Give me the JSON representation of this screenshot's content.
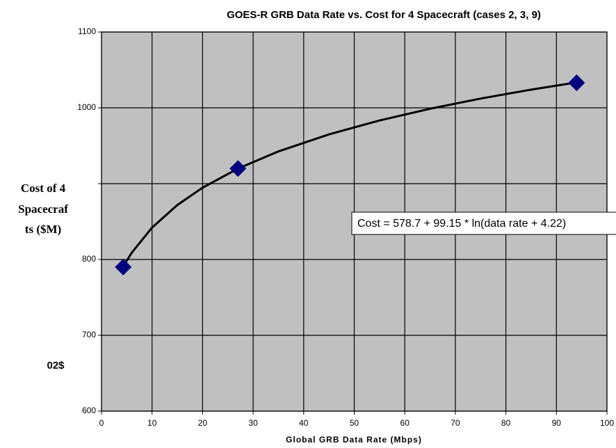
{
  "chart_data": {
    "type": "scatter",
    "title": "GOES-R GRB Data Rate vs. Cost for 4 Spacecraft (cases 2, 3, 9)",
    "xlabel": "Global GRB Data Rate (Mbps)",
    "ylabel": [
      "Cost of 4",
      "Spacecraf",
      "ts ($M)"
    ],
    "annotations": [
      "02$",
      "Cost  = 578.7 + 99.15 * ln(data rate + 4.22)"
    ],
    "xlim": [
      0,
      100
    ],
    "xticks": [
      0,
      10,
      20,
      30,
      40,
      50,
      60,
      70,
      80,
      90,
      100
    ],
    "ylim": [
      600,
      1100
    ],
    "yticks": [
      600,
      700,
      800,
      {
        "value": 900,
        "label": null
      },
      1000,
      1100
    ],
    "grid": true,
    "background": "#c0c0c0",
    "series": [
      {
        "name": null,
        "kind": "points",
        "color": "#000080",
        "x": [
          4.3,
          27,
          94
        ],
        "values": [
          790,
          920,
          1033
        ]
      },
      {
        "name": null,
        "kind": "line",
        "color": "#000000",
        "x": [
          4.3,
          6,
          10,
          15,
          20,
          27,
          35,
          45,
          55,
          65,
          75,
          85,
          94
        ],
        "values": [
          791.1,
          809.1,
          842.0,
          871.8,
          894.7,
          919.9,
          942.5,
          965.0,
          983.3,
          998.8,
          1012.2,
          1024.0,
          1033.5
        ]
      }
    ]
  }
}
